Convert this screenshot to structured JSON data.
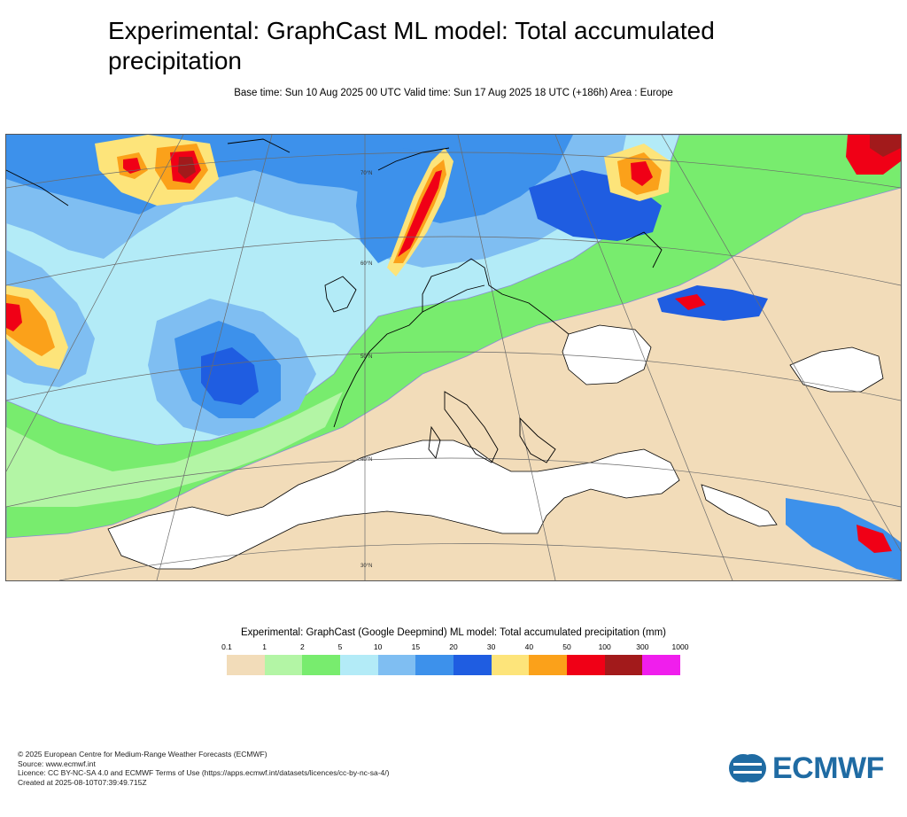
{
  "title": "Experimental: GraphCast ML model: Total accumulated precipitation",
  "subtitle": "Base time: Sun 10 Aug 2025 00 UTC Valid time: Sun 17 Aug 2025 18 UTC (+186h) Area : Europe",
  "map": {
    "grid_labels": [
      "60°N",
      "50°N",
      "40°N",
      "30°N",
      "70°N"
    ],
    "colors": {
      "tan": "#f2dcb9",
      "lightgreen": "#b3f5a5",
      "green": "#78ec6e",
      "paleblue": "#b3ebf7",
      "lightblue": "#7fbef2",
      "blue": "#3d91eb",
      "darkblue": "#1f5de1",
      "yellow": "#fde47a",
      "orange": "#fba11a",
      "red": "#f00016",
      "darkred": "#a21a1b",
      "magenta": "#f01eed"
    }
  },
  "legend": {
    "title": "Experimental: GraphCast (Google Deepmind) ML model: Total accumulated precipitation (mm)",
    "ticks": [
      "0.1",
      "1",
      "2",
      "5",
      "10",
      "15",
      "20",
      "30",
      "40",
      "50",
      "100",
      "300",
      "1000"
    ],
    "colors": [
      "#f2dcb9",
      "#b3f5a5",
      "#78ec6e",
      "#b3ebf7",
      "#7fbef2",
      "#3d91eb",
      "#1f5de1",
      "#fde47a",
      "#fba11a",
      "#f00016",
      "#a21a1b",
      "#f01eed"
    ]
  },
  "footer": {
    "line1": "© 2025 European Centre for Medium-Range Weather Forecasts (ECMWF)",
    "line2": "Source: www.ecmwf.int",
    "line3": "Licence: CC BY-NC-SA 4.0 and ECMWF Terms of Use (https://apps.ecmwf.int/datasets/licences/cc-by-nc-sa-4/)",
    "line4": "Created at 2025-08-10T07:39:49.715Z"
  },
  "logo": {
    "text": "ECMWF",
    "icon": "ecmwf-logo-icon",
    "color": "#1f6ba3"
  }
}
